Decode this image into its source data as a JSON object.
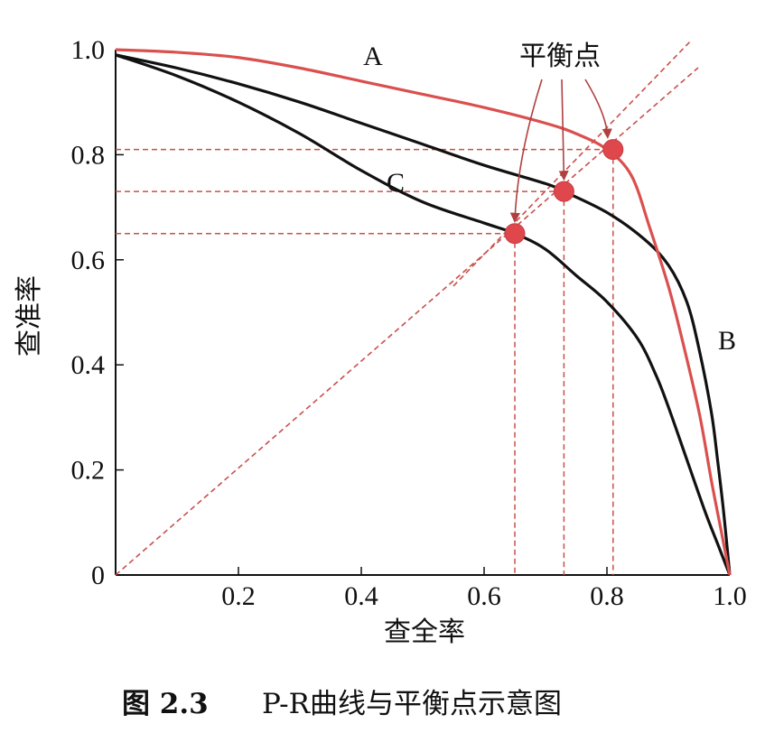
{
  "chart_data": {
    "type": "line",
    "xlabel": "查全率",
    "ylabel": "查准率",
    "xlim": [
      0,
      1
    ],
    "ylim": [
      0,
      1
    ],
    "xticks": [
      0.2,
      0.4,
      0.6,
      0.8,
      1.0
    ],
    "xtick_labels": [
      "0.2",
      "0.4",
      "0.6",
      "0.8",
      "1.0"
    ],
    "yticks": [
      0,
      0.2,
      0.4,
      0.6,
      0.8,
      1.0
    ],
    "ytick_labels": [
      "0",
      "0.2",
      "0.4",
      "0.6",
      "0.8",
      "1.0"
    ],
    "grid": false,
    "series": [
      {
        "name": "A",
        "color": "#d9504e",
        "x": [
          0,
          0.1,
          0.2,
          0.3,
          0.4,
          0.5,
          0.6,
          0.7,
          0.75,
          0.8,
          0.84,
          0.87,
          0.9,
          0.92,
          0.95,
          0.97,
          0.985,
          1.0
        ],
        "y": [
          1.0,
          0.995,
          0.985,
          0.965,
          0.94,
          0.915,
          0.89,
          0.86,
          0.84,
          0.81,
          0.76,
          0.66,
          0.55,
          0.46,
          0.31,
          0.18,
          0.09,
          0.0
        ]
      },
      {
        "name": "B",
        "color": "#111111",
        "x": [
          0,
          0.1,
          0.2,
          0.3,
          0.4,
          0.5,
          0.6,
          0.7,
          0.73,
          0.8,
          0.86,
          0.9,
          0.93,
          0.95,
          0.97,
          0.98,
          0.99,
          1.0
        ],
        "y": [
          0.99,
          0.965,
          0.935,
          0.9,
          0.86,
          0.82,
          0.78,
          0.745,
          0.73,
          0.69,
          0.64,
          0.59,
          0.52,
          0.43,
          0.31,
          0.22,
          0.12,
          0.0
        ]
      },
      {
        "name": "C",
        "color": "#111111",
        "x": [
          0,
          0.1,
          0.2,
          0.3,
          0.4,
          0.5,
          0.6,
          0.65,
          0.7,
          0.75,
          0.8,
          0.85,
          0.88,
          0.9,
          0.93,
          0.96,
          0.98,
          1.0
        ],
        "y": [
          0.99,
          0.95,
          0.9,
          0.84,
          0.77,
          0.71,
          0.67,
          0.65,
          0.62,
          0.57,
          0.52,
          0.45,
          0.38,
          0.32,
          0.22,
          0.12,
          0.06,
          0.0
        ]
      }
    ],
    "reference_line": {
      "x": [
        0,
        1
      ],
      "y": [
        0,
        1
      ],
      "color": "#c9504a",
      "style": "dashed"
    },
    "break_even_points": [
      {
        "x": 0.81,
        "y": 0.81,
        "series": "A"
      },
      {
        "x": 0.73,
        "y": 0.73,
        "series": "B"
      },
      {
        "x": 0.65,
        "y": 0.65,
        "series": "C"
      }
    ],
    "point_color": "#e0474c",
    "annotation": {
      "text": "平衡点",
      "target": "break_even_points"
    },
    "curve_labels": [
      {
        "text": "A",
        "series": "A"
      },
      {
        "text": "B",
        "series": "B"
      },
      {
        "text": "C",
        "series": "C"
      }
    ]
  },
  "caption": {
    "number": "图 2.3",
    "text": "P-R曲线与平衡点示意图"
  }
}
